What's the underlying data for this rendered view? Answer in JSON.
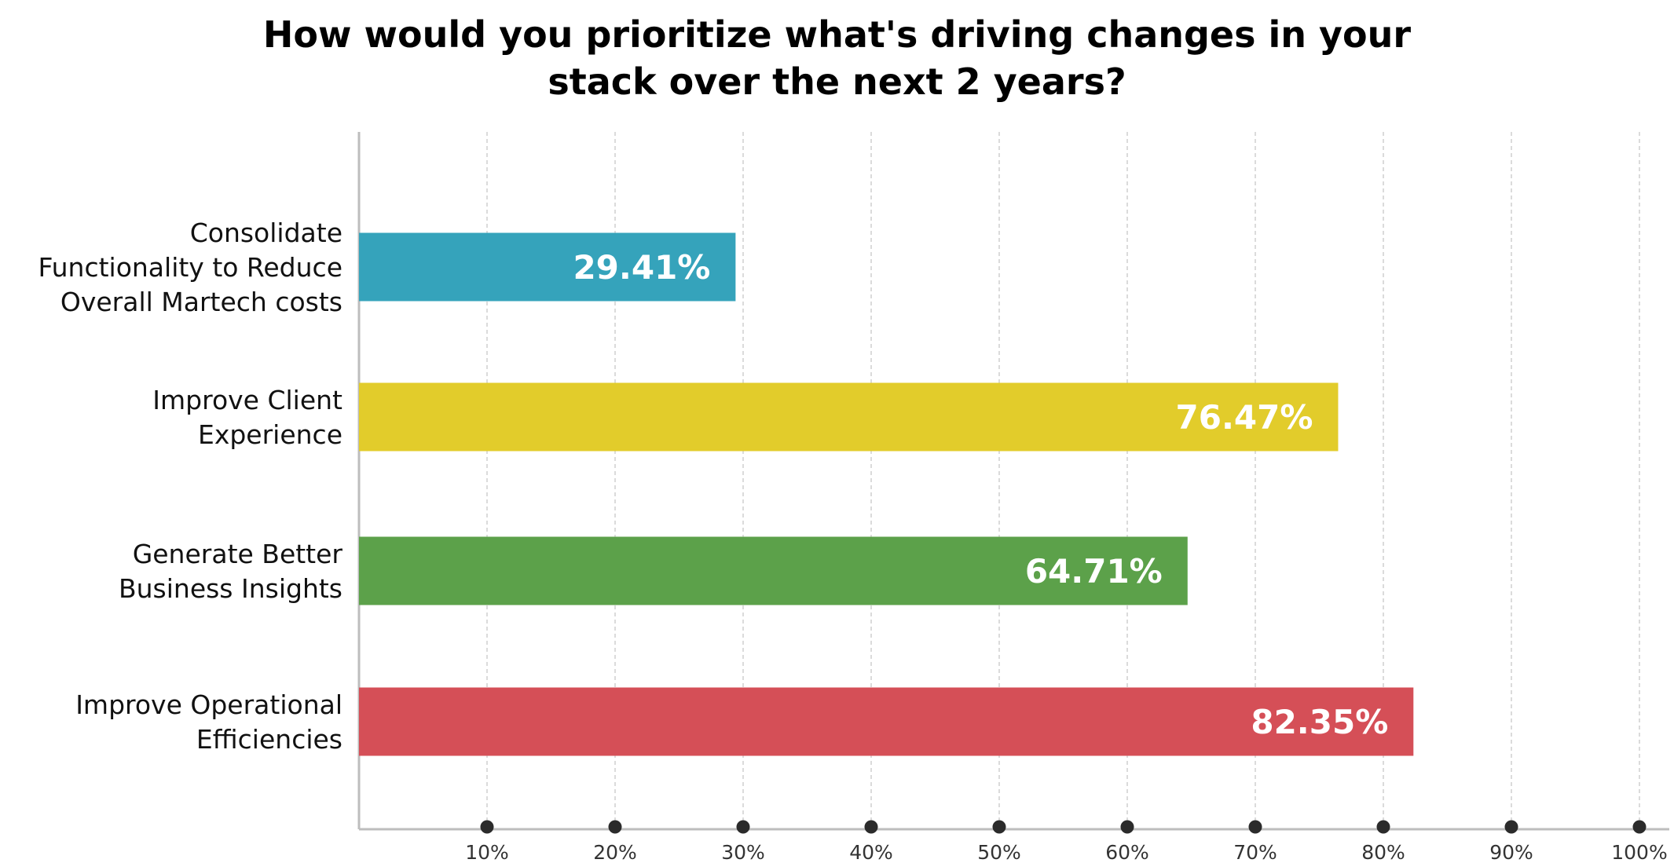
{
  "chart_data": {
    "type": "bar",
    "orientation": "horizontal",
    "title_lines": [
      "How would you prioritize what's driving changes in your",
      "stack over the next 2 years?"
    ],
    "categories": [
      [
        "Consolidate",
        "Functionality to Reduce",
        "Overall Martech costs"
      ],
      [
        "Improve Client",
        "Experience"
      ],
      [
        "Generate Better",
        "Business Insights"
      ],
      [
        "Improve Operational",
        "Efficiencies"
      ]
    ],
    "values": [
      29.41,
      76.47,
      64.71,
      82.35
    ],
    "value_labels": [
      "29.41%",
      "76.47%",
      "64.71%",
      "82.35%"
    ],
    "colors": [
      "#35a3bb",
      "#e2cc2b",
      "#5ca14a",
      "#d54f57"
    ],
    "xlim": [
      0,
      100
    ],
    "xticks": [
      10,
      20,
      30,
      40,
      50,
      60,
      70,
      80,
      90,
      100
    ],
    "xtick_labels": [
      "10%",
      "20%",
      "30%",
      "40%",
      "50%",
      "60%",
      "70%",
      "80%",
      "90%",
      "100%"
    ],
    "grid": true
  }
}
